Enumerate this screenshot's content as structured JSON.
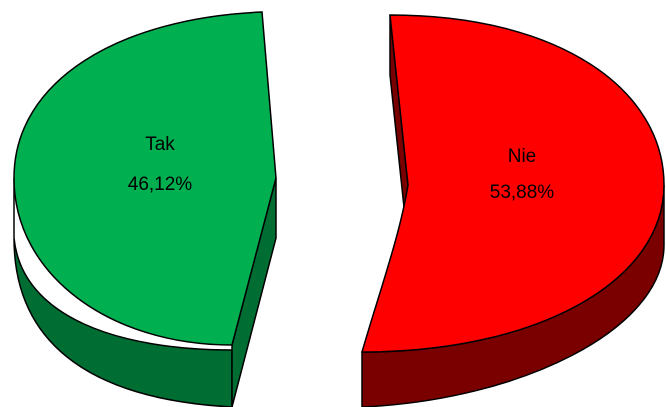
{
  "chart_data": {
    "type": "pie",
    "style": "3d-exploded",
    "slices": [
      {
        "label": "Tak",
        "value": 46.12,
        "value_label": "46,12%",
        "color": "#00b050",
        "side_color": "#006e33"
      },
      {
        "label": "Nie",
        "value": 53.88,
        "value_label": "53,88%",
        "color": "#ff0000",
        "side_color": "#7a0000"
      }
    ],
    "legend": "none"
  }
}
